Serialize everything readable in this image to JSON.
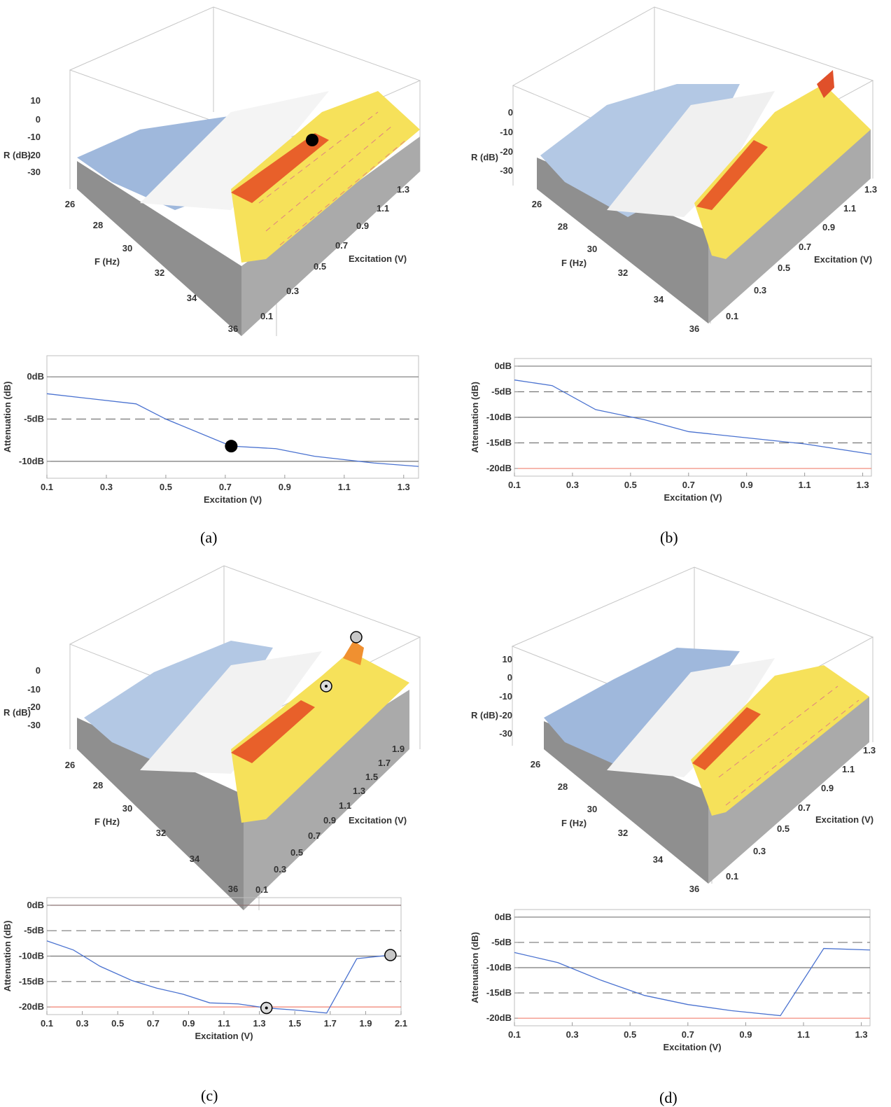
{
  "panels": [
    {
      "caption": "(a)",
      "surface": {
        "axis_z_label": "R (dB)",
        "z_ticks": [
          "10",
          "0",
          "-10",
          "-20",
          "-30"
        ],
        "axis_f_label": "F (Hz)",
        "f_ticks": [
          "26",
          "28",
          "30",
          "32",
          "34",
          "36"
        ],
        "axis_e_label": "Excitation (V)",
        "e_ticks": [
          "1.3",
          "1.1",
          "0.9",
          "0.7",
          "0.5",
          "0.3",
          "0.1"
        ],
        "markers": [
          {
            "type": "black-dot"
          }
        ]
      },
      "chart_data": {
        "type": "line",
        "xlabel": "Excitation (V)",
        "ylabel": "Attenuation (dB)",
        "x_ticks": [
          0.1,
          0.3,
          0.5,
          0.7,
          0.9,
          1.1,
          1.3
        ],
        "y_ticks": [
          {
            "v": 0,
            "label": "0dB"
          },
          {
            "v": -5,
            "label": "-5dB"
          },
          {
            "v": -10,
            "label": "-10dB"
          }
        ],
        "xlim": [
          0.1,
          1.35
        ],
        "ylim": [
          -12,
          2.5
        ],
        "ref_lines": [
          {
            "y": 0,
            "style": "solid",
            "color": "#777777"
          },
          {
            "y": -5,
            "style": "dashed",
            "color": "#777777"
          },
          {
            "y": -10,
            "style": "solid",
            "color": "#777777"
          }
        ],
        "series": [
          {
            "x": [
              0.1,
              0.4,
              0.5,
              0.72,
              0.87,
              1.0,
              1.2,
              1.35
            ],
            "y": [
              -2.0,
              -3.2,
              -5.0,
              -8.2,
              -8.5,
              -9.4,
              -10.2,
              -10.6
            ]
          }
        ],
        "markers": [
          {
            "x": 0.72,
            "y": -8.2,
            "type": "black-dot"
          }
        ]
      }
    },
    {
      "caption": "(b)",
      "surface": {
        "axis_z_label": "R (dB)",
        "z_ticks": [
          "0",
          "-10",
          "-20",
          "-30"
        ],
        "axis_f_label": "F (Hz)",
        "f_ticks": [
          "26",
          "28",
          "30",
          "32",
          "34",
          "36"
        ],
        "axis_e_label": "Excitation (V)",
        "e_ticks": [
          "1.3",
          "1.1",
          "0.9",
          "0.7",
          "0.5",
          "0.3",
          "0.1"
        ],
        "markers": []
      },
      "chart_data": {
        "type": "line",
        "xlabel": "Excitation (V)",
        "ylabel": "Attenuation (dB)",
        "x_ticks": [
          0.1,
          0.3,
          0.5,
          0.7,
          0.9,
          1.1,
          1.3
        ],
        "y_ticks": [
          {
            "v": 0,
            "label": "0dB"
          },
          {
            "v": -5,
            "label": "-5dB"
          },
          {
            "v": -10,
            "label": "-10dB"
          },
          {
            "v": -15,
            "label": "-15dB"
          },
          {
            "v": -20,
            "label": "-20dB"
          }
        ],
        "xlim": [
          0.1,
          1.33
        ],
        "ylim": [
          -21.5,
          1.5
        ],
        "ref_lines": [
          {
            "y": 0,
            "style": "solid",
            "color": "#777777"
          },
          {
            "y": -5,
            "style": "dashed",
            "color": "#777777"
          },
          {
            "y": -10,
            "style": "solid",
            "color": "#777777"
          },
          {
            "y": -15,
            "style": "dashed",
            "color": "#777777"
          },
          {
            "y": -20,
            "style": "solid",
            "color": "#f08070"
          }
        ],
        "series": [
          {
            "x": [
              0.1,
              0.23,
              0.38,
              0.55,
              0.7,
              0.9,
              1.1,
              1.33
            ],
            "y": [
              -2.7,
              -3.8,
              -8.5,
              -10.5,
              -12.8,
              -14.0,
              -15.2,
              -17.2
            ]
          }
        ],
        "markers": []
      }
    },
    {
      "caption": "(c)",
      "surface": {
        "axis_z_label": "R (dB)",
        "z_ticks": [
          "0",
          "-10",
          "-20",
          "-30"
        ],
        "axis_f_label": "F (Hz)",
        "f_ticks": [
          "26",
          "28",
          "30",
          "32",
          "34",
          "36"
        ],
        "axis_e_label": "Excitation (V)",
        "e_ticks": [
          "1.9",
          "1.7",
          "1.5",
          "1.3",
          "1.1",
          "0.9",
          "0.7",
          "0.5",
          "0.3",
          "0.1"
        ],
        "markers": [
          {
            "type": "grey-dot"
          },
          {
            "type": "dotted-circle"
          }
        ]
      },
      "chart_data": {
        "type": "line",
        "xlabel": "Excitation (V)",
        "ylabel": "Attenuation (dB)",
        "x_ticks": [
          0.1,
          0.3,
          0.5,
          0.7,
          0.9,
          1.1,
          1.3,
          1.5,
          1.7,
          1.9,
          2.1
        ],
        "y_ticks": [
          {
            "v": 0,
            "label": "0dB"
          },
          {
            "v": -5,
            "label": "-5dB"
          },
          {
            "v": -10,
            "label": "-10dB"
          },
          {
            "v": -15,
            "label": "-15dB"
          },
          {
            "v": -20,
            "label": "-20dB"
          }
        ],
        "xlim": [
          0.1,
          2.1
        ],
        "ylim": [
          -21.5,
          1.5
        ],
        "ref_lines": [
          {
            "y": 0,
            "style": "solid",
            "color": "#8a7070"
          },
          {
            "y": -5,
            "style": "dashed",
            "color": "#777777"
          },
          {
            "y": -10,
            "style": "solid",
            "color": "#777777"
          },
          {
            "y": -15,
            "style": "dashed",
            "color": "#777777"
          },
          {
            "y": -20,
            "style": "solid",
            "color": "#f08070"
          }
        ],
        "series": [
          {
            "x": [
              0.1,
              0.25,
              0.4,
              0.58,
              0.72,
              0.87,
              1.02,
              1.18,
              1.34,
              1.5,
              1.68,
              1.85,
              2.04
            ],
            "y": [
              -7.0,
              -8.8,
              -12.0,
              -14.8,
              -16.3,
              -17.5,
              -19.2,
              -19.4,
              -20.2,
              -20.6,
              -21.2,
              -10.5,
              -9.8
            ]
          }
        ],
        "markers": [
          {
            "x": 1.34,
            "y": -20.2,
            "type": "dotted-circle"
          },
          {
            "x": 2.04,
            "y": -9.8,
            "type": "grey-dot"
          }
        ]
      }
    },
    {
      "caption": "(d)",
      "surface": {
        "axis_z_label": "R (dB)",
        "z_ticks": [
          "10",
          "0",
          "-10",
          "-20",
          "-30"
        ],
        "axis_f_label": "F (Hz)",
        "f_ticks": [
          "26",
          "28",
          "30",
          "32",
          "34",
          "36"
        ],
        "axis_e_label": "Excitation (V)",
        "e_ticks": [
          "1.3",
          "1.1",
          "0.9",
          "0.7",
          "0.5",
          "0.3",
          "0.1"
        ],
        "markers": []
      },
      "chart_data": {
        "type": "line",
        "xlabel": "Excitation (V)",
        "ylabel": "Attenuation (dB)",
        "x_ticks": [
          0.1,
          0.3,
          0.5,
          0.7,
          0.9,
          1.1,
          1.3
        ],
        "y_ticks": [
          {
            "v": 0,
            "label": "0dB"
          },
          {
            "v": -5,
            "label": "-5dB"
          },
          {
            "v": -10,
            "label": "-10dB"
          },
          {
            "v": -15,
            "label": "-15dB"
          },
          {
            "v": -20,
            "label": "-20dB"
          }
        ],
        "xlim": [
          0.1,
          1.33
        ],
        "ylim": [
          -21.5,
          1.5
        ],
        "ref_lines": [
          {
            "y": 0,
            "style": "solid",
            "color": "#777777"
          },
          {
            "y": -5,
            "style": "dashed",
            "color": "#777777"
          },
          {
            "y": -10,
            "style": "solid",
            "color": "#777777"
          },
          {
            "y": -15,
            "style": "dashed",
            "color": "#777777"
          },
          {
            "y": -20,
            "style": "solid",
            "color": "#f08070"
          }
        ],
        "series": [
          {
            "x": [
              0.1,
              0.25,
              0.4,
              0.55,
              0.7,
              0.85,
              1.02,
              1.17,
              1.33
            ],
            "y": [
              -7.0,
              -9.0,
              -12.5,
              -15.5,
              -17.3,
              -18.5,
              -19.5,
              -6.2,
              -6.5
            ]
          }
        ],
        "markers": []
      }
    }
  ],
  "colors": {
    "series": "#4a72d0",
    "grid_ref": "#777777",
    "limit": "#f08070",
    "frame": "#bfbfbf"
  }
}
